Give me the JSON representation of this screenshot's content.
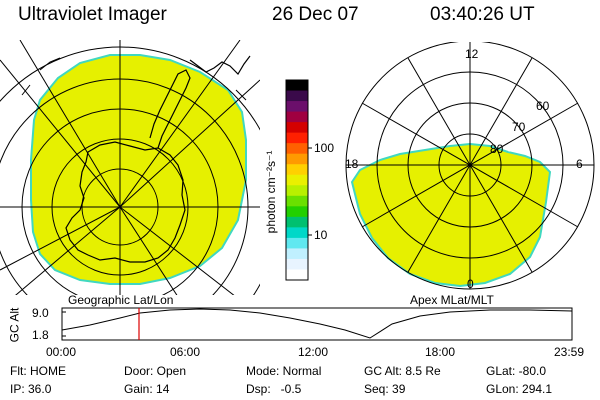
{
  "header": {
    "title": "Ultraviolet Imager",
    "date": "26 Dec 07",
    "time": "03:40:26 UT"
  },
  "geo_panel": {
    "label": "Geographic Lat/Lon"
  },
  "mag_panel": {
    "label": "Apex MLat/MLT",
    "mlt_labels": {
      "top": "12",
      "left": "18",
      "right": "6",
      "bottom": "0"
    },
    "lat_labels": [
      "60",
      "70",
      "80"
    ]
  },
  "colorbar": {
    "unit_label": "photon cm⁻²s⁻¹",
    "ticks": [
      "100",
      "10"
    ],
    "colors": [
      "#000000",
      "#3a0a4a",
      "#6b0f6b",
      "#a00040",
      "#d40000",
      "#ff2000",
      "#ff6000",
      "#ff9a00",
      "#ffd000",
      "#eaf000",
      "#b8f000",
      "#6ae000",
      "#22d000",
      "#00c070",
      "#00d8c8",
      "#60e8f0",
      "#c0f0ff",
      "#e8f4ff",
      "#ffffff"
    ]
  },
  "timeline": {
    "ylabel": "GC Alt",
    "y_max": "9.0",
    "y_min": "1.8",
    "x_ticks": [
      "00:00",
      "06:00",
      "12:00",
      "18:00",
      "23:59"
    ],
    "marker_time": "03:40"
  },
  "footer": {
    "flt": "Flt: HOME",
    "ip": "IP: 36.0",
    "door": "Door: Open",
    "gain": "Gain: 14",
    "mode": "Mode: Normal",
    "dsp": "Dsp:   -0.5",
    "gcalt": "GC Alt: 8.5 Re",
    "seq": "Seq: 39",
    "glat": "GLat: -80.0",
    "glon": "GLon: 294.1"
  },
  "colors": {
    "aurora_fill": "#e6f000",
    "aurora_edge": "#40d8c0",
    "marker": "#dd0000"
  }
}
